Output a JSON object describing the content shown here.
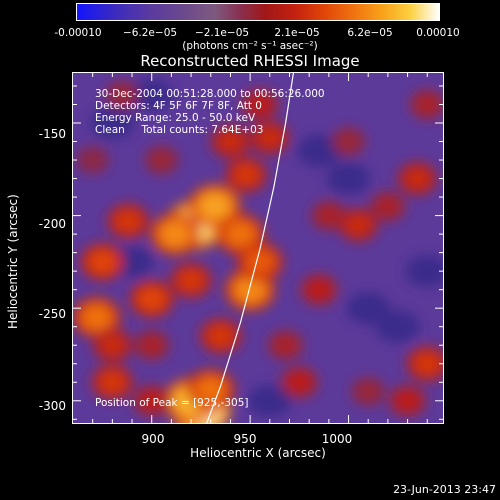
{
  "colorbar": {
    "ticks": [
      "-0.00010",
      "−6.2e−05",
      "−2.1e−05",
      "2.1e−05",
      "6.2e−05",
      "0.00010"
    ],
    "tick_values": [
      -0.0001,
      -6.2e-05,
      -2.1e-05,
      2.1e-05,
      6.2e-05,
      0.0001
    ],
    "unit": "(photons cm⁻² s⁻¹ asec⁻²)",
    "colors": [
      "#1414ff",
      "#6d4a8c",
      "#a01818",
      "#e04408",
      "#f8a018",
      "#ffffff"
    ]
  },
  "chart_data": {
    "type": "heatmap",
    "title": "Reconstructed RHESSI Image",
    "xlabel": "Heliocentric X (arcsec)",
    "ylabel": "Heliocentric Y (arcsec)",
    "xlim": [
      860,
      1048
    ],
    "ylim": [
      -312,
      -123
    ],
    "xticks": [
      900,
      950,
      1000
    ],
    "yticks": [
      -150,
      -200,
      -250,
      -300
    ],
    "info_lines": [
      "30-Dec-2004 00:51:28.000 to 00:56:26.000",
      "Detectors: 4F 5F 6F 7F 8F, Att 0",
      "Energy Range: 25.0 - 50.0 keV",
      "Clean     Total counts: 7.64E+03"
    ],
    "peak_label": "Position of Peak = [925,-305]",
    "peak_position": [
      925,
      -305
    ],
    "limb_line": [
      [
        928,
        -312
      ],
      [
        935,
        -292
      ],
      [
        945,
        -258
      ],
      [
        955,
        -218
      ],
      [
        962,
        -185
      ],
      [
        968,
        -150
      ],
      [
        972,
        -123
      ]
    ],
    "blobs": [
      {
        "x": 925,
        "y": -305,
        "v": 1.0
      },
      {
        "x": 920,
        "y": -300,
        "v": 0.85
      },
      {
        "x": 930,
        "y": -294,
        "v": 0.7
      },
      {
        "x": 922,
        "y": -205,
        "v": 0.95
      },
      {
        "x": 932,
        "y": -195,
        "v": 0.8
      },
      {
        "x": 912,
        "y": -210,
        "v": 0.75
      },
      {
        "x": 945,
        "y": -210,
        "v": 0.7
      },
      {
        "x": 950,
        "y": -240,
        "v": 0.75
      },
      {
        "x": 955,
        "y": -225,
        "v": 0.65
      },
      {
        "x": 888,
        "y": -203,
        "v": 0.55
      },
      {
        "x": 875,
        "y": -225,
        "v": 0.6
      },
      {
        "x": 872,
        "y": -255,
        "v": 0.7
      },
      {
        "x": 900,
        "y": -245,
        "v": 0.6
      },
      {
        "x": 920,
        "y": -235,
        "v": 0.55
      },
      {
        "x": 935,
        "y": -265,
        "v": 0.55
      },
      {
        "x": 900,
        "y": -270,
        "v": 0.4
      },
      {
        "x": 880,
        "y": -270,
        "v": 0.5
      },
      {
        "x": 880,
        "y": -290,
        "v": 0.55
      },
      {
        "x": 900,
        "y": -300,
        "v": 0.45
      },
      {
        "x": 948,
        "y": -178,
        "v": 0.55
      },
      {
        "x": 940,
        "y": -160,
        "v": 0.5
      },
      {
        "x": 960,
        "y": -158,
        "v": 0.5
      },
      {
        "x": 955,
        "y": -140,
        "v": 0.45
      },
      {
        "x": 905,
        "y": -170,
        "v": 0.35
      },
      {
        "x": 885,
        "y": -135,
        "v": 0.35
      },
      {
        "x": 968,
        "y": -270,
        "v": 0.4
      },
      {
        "x": 975,
        "y": -290,
        "v": 0.45
      },
      {
        "x": 985,
        "y": -240,
        "v": 0.45
      },
      {
        "x": 990,
        "y": -200,
        "v": 0.4
      },
      {
        "x": 1005,
        "y": -205,
        "v": 0.5
      },
      {
        "x": 1020,
        "y": -195,
        "v": 0.4
      },
      {
        "x": 1035,
        "y": -180,
        "v": 0.5
      },
      {
        "x": 1040,
        "y": -280,
        "v": 0.55
      },
      {
        "x": 1030,
        "y": -300,
        "v": 0.45
      },
      {
        "x": 1000,
        "y": -160,
        "v": 0.35
      },
      {
        "x": 1040,
        "y": -140,
        "v": 0.4
      },
      {
        "x": 1010,
        "y": -295,
        "v": 0.35
      },
      {
        "x": 870,
        "y": -170,
        "v": 0.3
      }
    ]
  },
  "footer": {
    "datestamp": "23-Jun-2013 23:47"
  }
}
